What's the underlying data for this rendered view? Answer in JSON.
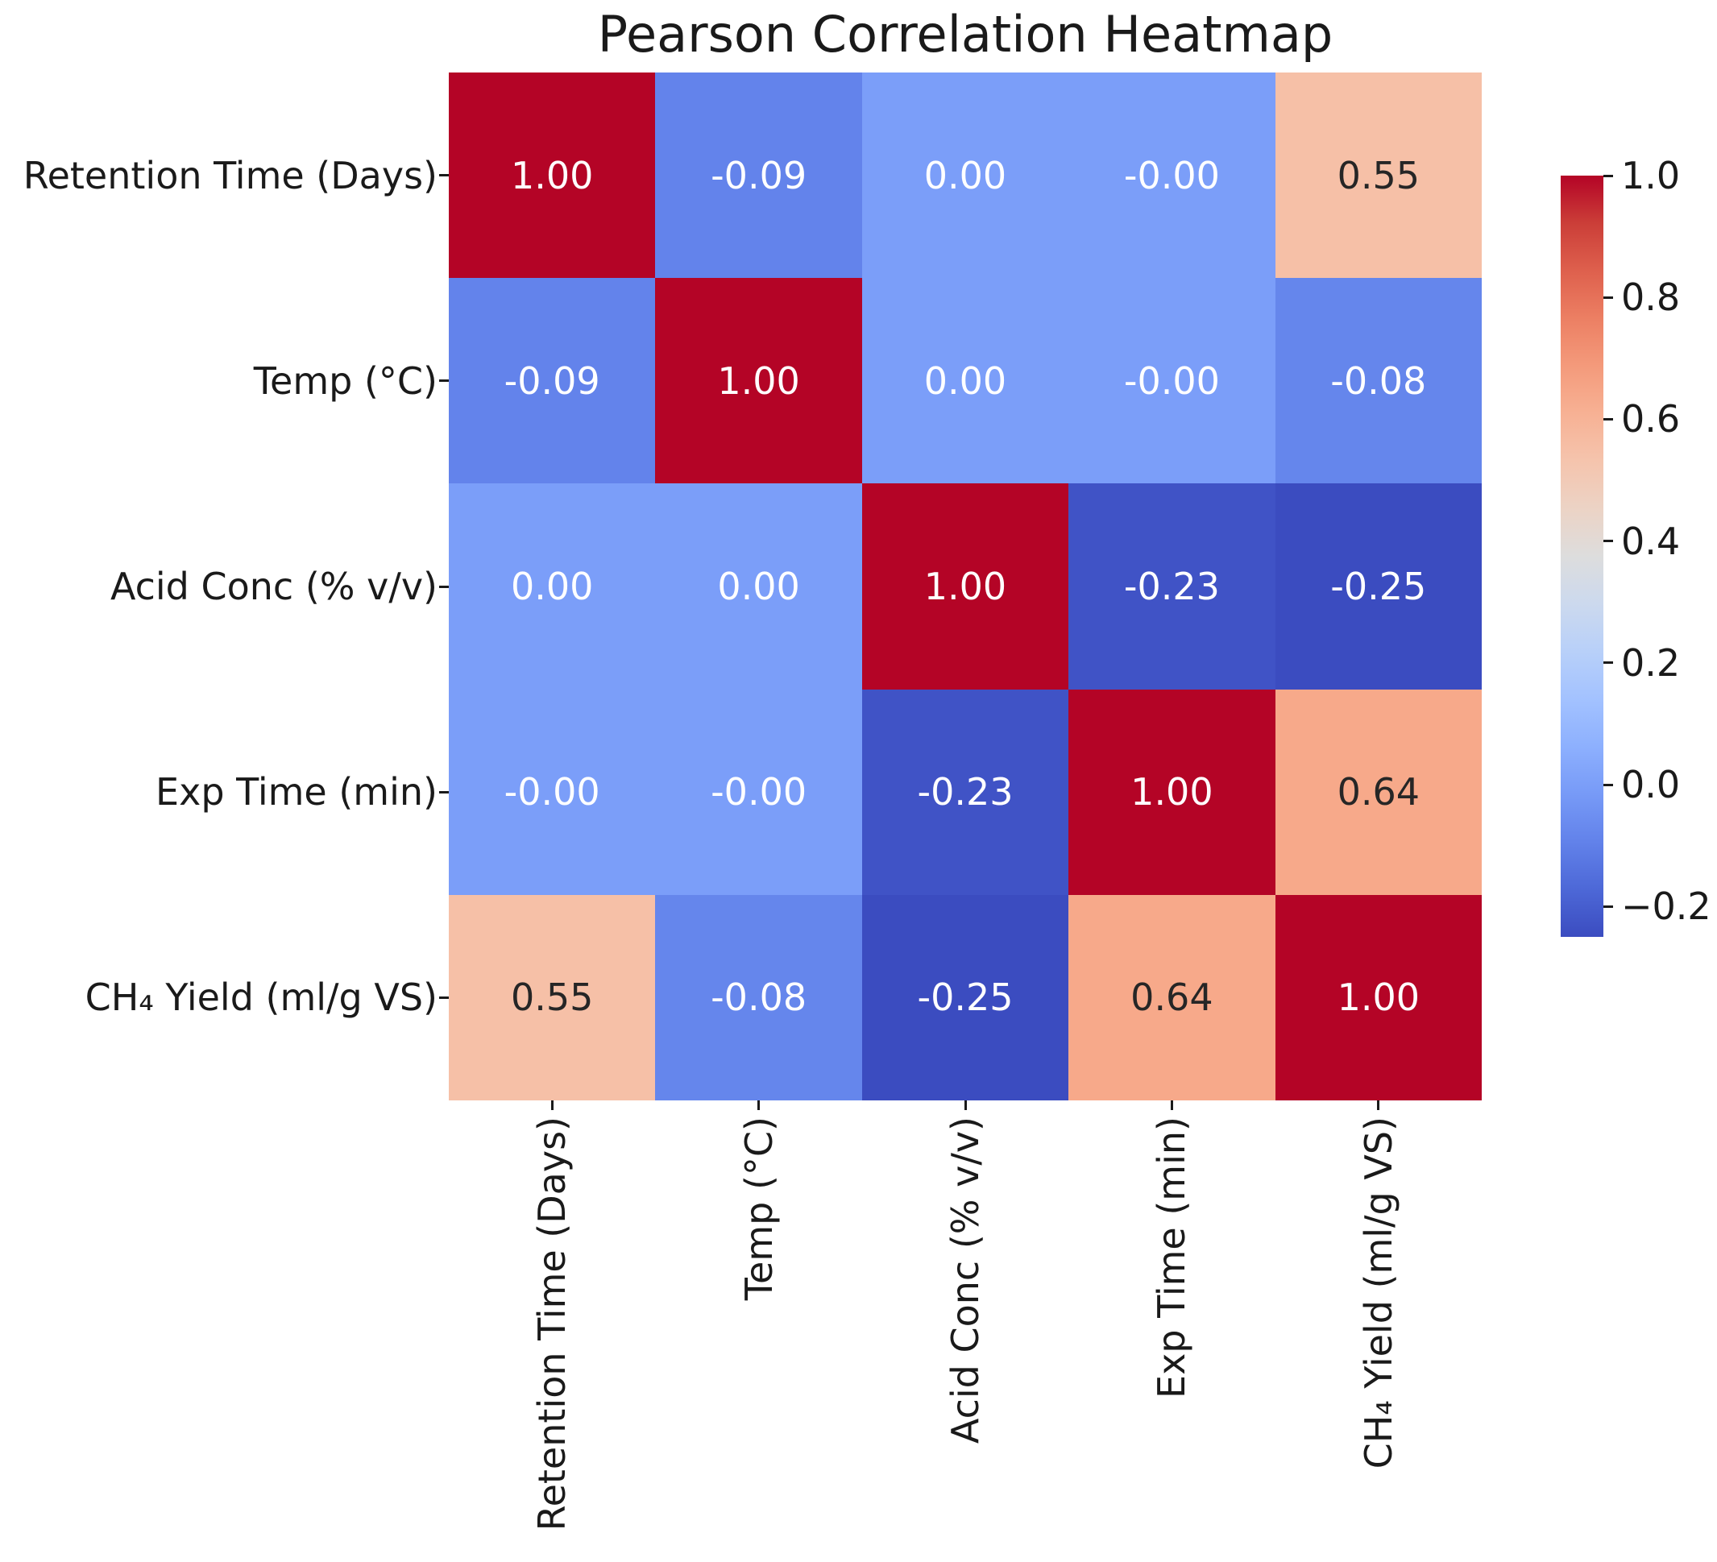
{
  "title": "Pearson Correlation Heatmap",
  "chart_data": {
    "type": "heatmap",
    "title": "Pearson Correlation Heatmap",
    "colormap": "coolwarm",
    "categories": [
      "Retention Time (Days)",
      "Temp (°C)",
      "Acid Conc (% v/v)",
      "Exp Time (min)",
      "CH₄ Yield (ml/g VS)"
    ],
    "values": [
      [
        1.0,
        -0.09,
        0.0,
        -0.0,
        0.55
      ],
      [
        -0.09,
        1.0,
        0.0,
        -0.0,
        -0.08
      ],
      [
        0.0,
        0.0,
        1.0,
        -0.23,
        -0.25
      ],
      [
        -0.0,
        -0.0,
        -0.23,
        1.0,
        0.64
      ],
      [
        0.55,
        -0.08,
        -0.25,
        0.64,
        1.0
      ]
    ],
    "cell_labels": [
      [
        "1.00",
        "-0.09",
        "0.00",
        "-0.00",
        "0.55"
      ],
      [
        "-0.09",
        "1.00",
        "0.00",
        "-0.00",
        "-0.08"
      ],
      [
        "0.00",
        "0.00",
        "1.00",
        "-0.23",
        "-0.25"
      ],
      [
        "-0.00",
        "-0.00",
        "-0.23",
        "1.00",
        "0.64"
      ],
      [
        "0.55",
        "-0.08",
        "-0.25",
        "0.64",
        "1.00"
      ]
    ],
    "cell_colors": [
      [
        "#B40426",
        "#6383EB",
        "#7B9EF9",
        "#7B9EF9",
        "#F6C0A7"
      ],
      [
        "#6383EB",
        "#B40426",
        "#7B9EF9",
        "#7B9EF9",
        "#6586EC"
      ],
      [
        "#7B9EF9",
        "#7B9EF9",
        "#B40426",
        "#4053C6",
        "#3B4CC0"
      ],
      [
        "#7B9EF9",
        "#7B9EF9",
        "#4053C6",
        "#B40426",
        "#F7A98A"
      ],
      [
        "#F6C0A7",
        "#6586EC",
        "#3B4CC0",
        "#F7A98A",
        "#B40426"
      ]
    ],
    "cell_text_colors": [
      [
        "#ffffff",
        "#ffffff",
        "#ffffff",
        "#ffffff",
        "#262626"
      ],
      [
        "#ffffff",
        "#ffffff",
        "#ffffff",
        "#ffffff",
        "#ffffff"
      ],
      [
        "#ffffff",
        "#ffffff",
        "#ffffff",
        "#ffffff",
        "#ffffff"
      ],
      [
        "#ffffff",
        "#ffffff",
        "#ffffff",
        "#ffffff",
        "#262626"
      ],
      [
        "#262626",
        "#ffffff",
        "#ffffff",
        "#262626",
        "#ffffff"
      ]
    ],
    "colorbar": {
      "vmin": -0.25,
      "vmax": 1.0,
      "tick_labels": [
        "1.0",
        "0.8",
        "0.6",
        "0.4",
        "0.2",
        "0.0",
        "−0.2"
      ],
      "tick_values": [
        1.0,
        0.8,
        0.6,
        0.4,
        0.2,
        0.0,
        -0.2
      ],
      "gradient_bottom_to_top": [
        "#3B4CC0",
        "#4D68D7",
        "#6282EA",
        "#779AF7",
        "#8DB0FE",
        "#A3C2FF",
        "#B8D0F9",
        "#CCD9EE",
        "#DDDDDD",
        "#ECD3C5",
        "#F5C4AD",
        "#F7B194",
        "#F49A7B",
        "#EC7F63",
        "#DE604D",
        "#CB3E38",
        "#B40426"
      ]
    },
    "styles": {
      "background": "#ffffff",
      "axis_text": "#1a1a1a",
      "annotation_light": "#ffffff",
      "annotation_dark": "#262626"
    },
    "legend_position": "right-colorbar",
    "grid": false
  }
}
